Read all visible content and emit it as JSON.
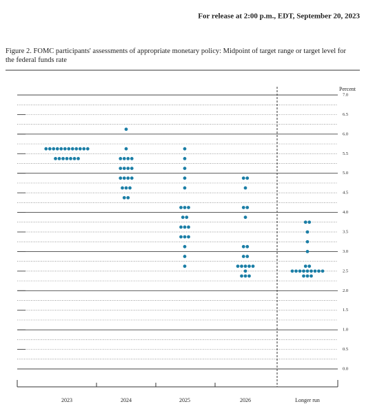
{
  "chart_data": {
    "type": "dot",
    "header": "For release at 2:00 p.m., EDT, September 20, 2023",
    "title": "Figure 2.  FOMC participants' assessments of appropriate monetary policy:  Midpoint of target range or target level for the federal funds rate",
    "ylabel": "Percent",
    "categories": [
      "2023",
      "2024",
      "2025",
      "2026",
      "Longer run"
    ],
    "dots": [
      [
        {
          "value": 5.625,
          "count": 12
        },
        {
          "value": 5.375,
          "count": 7
        }
      ],
      [
        {
          "value": 6.125,
          "count": 1
        },
        {
          "value": 5.625,
          "count": 1
        },
        {
          "value": 5.375,
          "count": 4
        },
        {
          "value": 5.125,
          "count": 4
        },
        {
          "value": 4.875,
          "count": 4
        },
        {
          "value": 4.625,
          "count": 3
        },
        {
          "value": 4.375,
          "count": 2
        }
      ],
      [
        {
          "value": 5.625,
          "count": 1
        },
        {
          "value": 5.375,
          "count": 1
        },
        {
          "value": 5.125,
          "count": 1
        },
        {
          "value": 4.875,
          "count": 1
        },
        {
          "value": 4.625,
          "count": 1
        },
        {
          "value": 4.125,
          "count": 3
        },
        {
          "value": 3.875,
          "count": 2
        },
        {
          "value": 3.625,
          "count": 3
        },
        {
          "value": 3.375,
          "count": 3
        },
        {
          "value": 3.125,
          "count": 1
        },
        {
          "value": 2.875,
          "count": 1
        },
        {
          "value": 2.625,
          "count": 1
        }
      ],
      [
        {
          "value": 4.875,
          "count": 2
        },
        {
          "value": 4.625,
          "count": 1
        },
        {
          "value": 4.125,
          "count": 2
        },
        {
          "value": 3.875,
          "count": 1
        },
        {
          "value": 3.125,
          "count": 2
        },
        {
          "value": 2.875,
          "count": 2
        },
        {
          "value": 2.625,
          "count": 5
        },
        {
          "value": 2.5,
          "count": 1
        },
        {
          "value": 2.375,
          "count": 3
        }
      ],
      [
        {
          "value": 3.75,
          "count": 2
        },
        {
          "value": 3.5,
          "count": 1
        },
        {
          "value": 3.25,
          "count": 1
        },
        {
          "value": 3.0,
          "count": 1
        },
        {
          "value": 2.625,
          "count": 2
        },
        {
          "value": 2.5,
          "count": 9
        },
        {
          "value": 2.375,
          "count": 3
        }
      ]
    ],
    "color": "#1b7ea6",
    "ylim": [
      0,
      7
    ],
    "yticks": [
      {
        "value": 0,
        "label": "0.0"
      },
      0.5,
      {
        "value": 1,
        "label": "1.0"
      },
      1.5,
      {
        "value": 2,
        "label": "2.0"
      },
      2.5,
      {
        "value": 3,
        "label": "3.0"
      },
      3.5,
      {
        "value": 4,
        "label": "4.0"
      },
      4.5,
      {
        "value": 5,
        "label": "5.0"
      },
      5.5,
      {
        "value": 6,
        "label": "6.0"
      },
      6.5,
      {
        "value": 7,
        "label": "7.0"
      }
    ],
    "yminorticks": [
      0.25,
      0.75,
      1.25,
      1.75,
      2.25,
      2.75,
      3.25,
      3.75,
      4.25,
      4.75,
      5.25,
      5.75,
      6.25,
      6.75
    ],
    "grid": true
  }
}
